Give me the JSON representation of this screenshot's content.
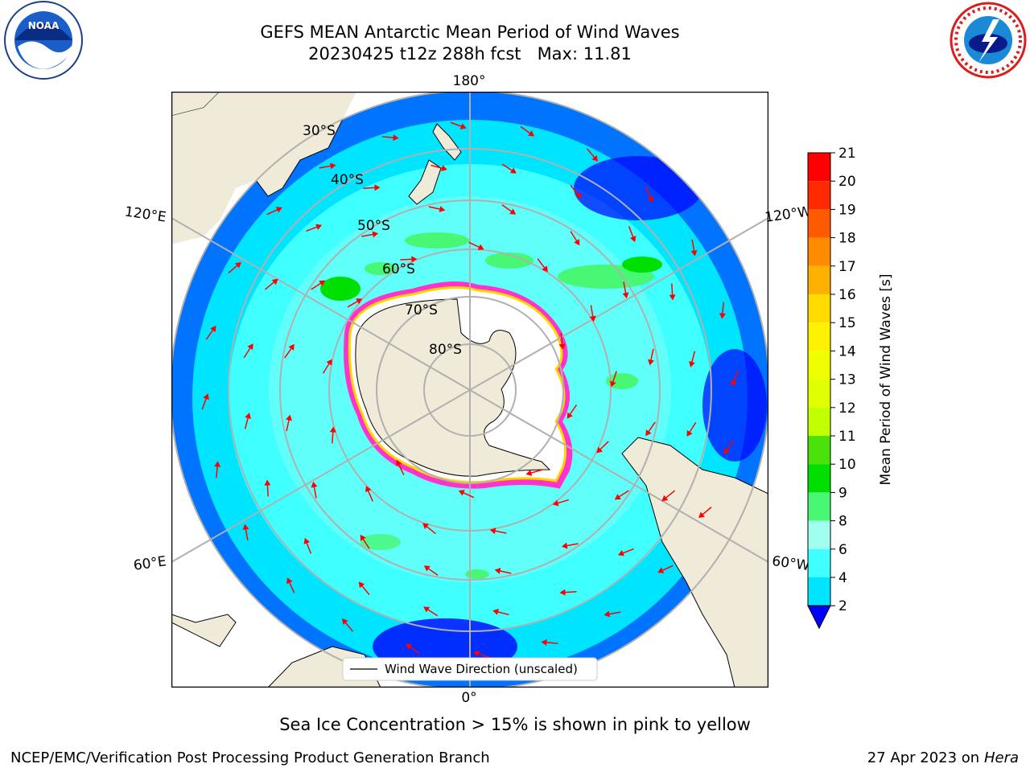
{
  "header": {
    "title_line1": "GEFS MEAN Antarctic Mean Period of Wind Waves",
    "title_line2": "20230425 t12z 288h fcst   Max: 11.81"
  },
  "logos": {
    "left": "NOAA",
    "right": "NATIONAL WEATHER SERVICE"
  },
  "map": {
    "projection": "south-polar-stereographic",
    "longitude_labels": {
      "top": "180°",
      "upper_left": "120°E",
      "upper_right": "120°W",
      "lower_left": "60°E",
      "lower_right": "60°W",
      "bottom": "0°"
    },
    "latitude_labels": [
      "30°S",
      "40°S",
      "50°S",
      "60°S",
      "70°S",
      "80°S"
    ],
    "legend": "Wind Wave Direction (unscaled)",
    "arrow_color": "#ff0000",
    "land_color": "#efebd8",
    "sea_ice_colors": [
      "#ff33cc",
      "#ffd700"
    ]
  },
  "colorbar": {
    "label": "Mean Period of Wind Waves [s]",
    "ticks": [
      "2",
      "4",
      "6",
      "8",
      "9",
      "10",
      "11",
      "12",
      "13",
      "14",
      "15",
      "16",
      "17",
      "18",
      "19",
      "20",
      "21"
    ],
    "colors": [
      "#0073ff",
      "#00e5ff",
      "#3fffff",
      "#a0ffef",
      "#48f774",
      "#00e000",
      "#4be10a",
      "#c2ff00",
      "#e0ff00",
      "#efff00",
      "#fff200",
      "#ffdb00",
      "#ffb000",
      "#ff8c00",
      "#ff5a00",
      "#ff2a00",
      "#ff0000"
    ],
    "extend_min_color": "#0000ff"
  },
  "footer": {
    "note": "Sea Ice Concentration > 15% is shown in pink to yellow",
    "credit_left": "NCEP/EMC/Verification Post Processing Product Generation Branch",
    "date": "27 Apr 2023 on",
    "machine": "Hera"
  }
}
